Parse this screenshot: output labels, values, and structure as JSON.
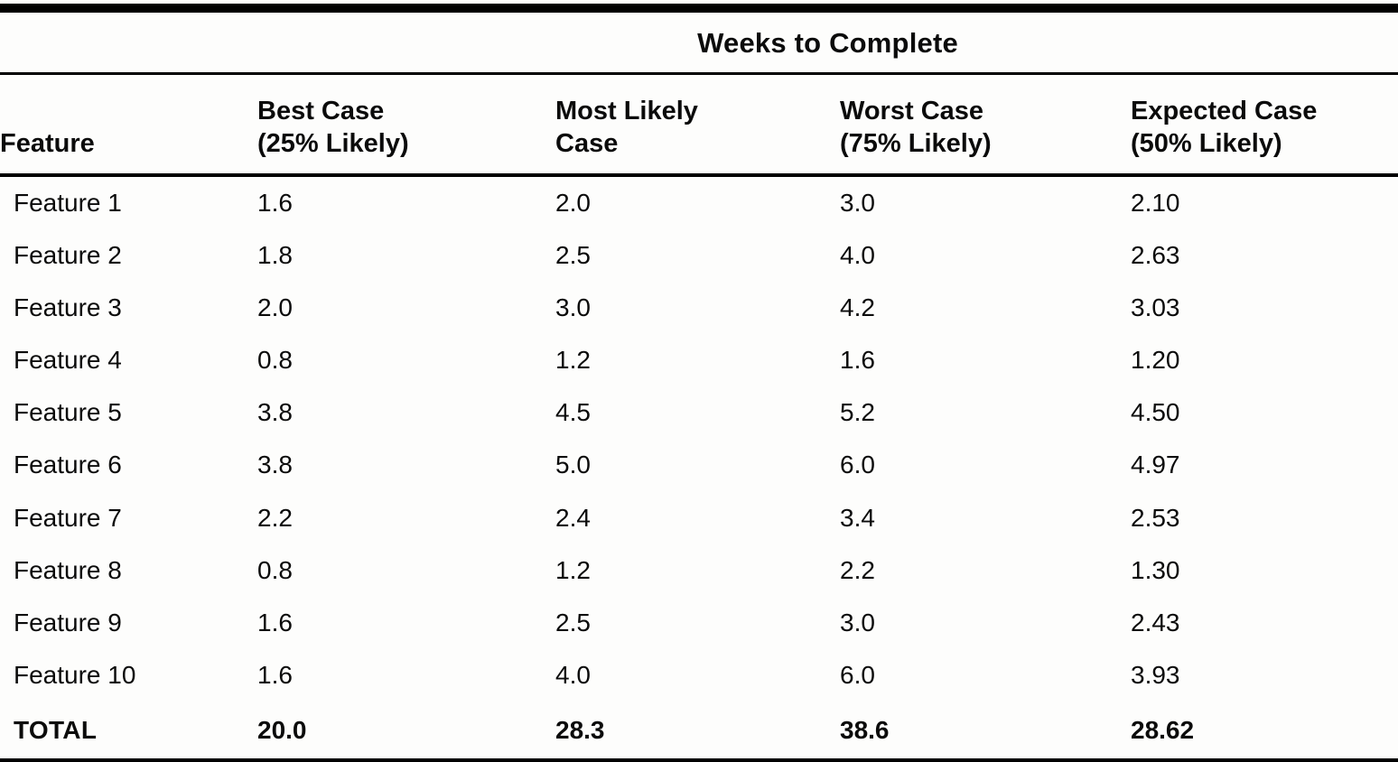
{
  "page": {
    "background": "#fdfdfc",
    "text_color": "#0b0b0b"
  },
  "table": {
    "title": "Weeks to Complete",
    "columns": [
      {
        "line1": "Feature",
        "line2": ""
      },
      {
        "line1": "Best Case",
        "line2": "(25% Likely)"
      },
      {
        "line1": "Most Likely",
        "line2": "Case"
      },
      {
        "line1": "Worst Case",
        "line2": "(75% Likely)"
      },
      {
        "line1": "Expected Case",
        "line2": "(50% Likely)"
      }
    ],
    "rows": [
      {
        "feature": "Feature 1",
        "best": "1.6",
        "most_likely": "2.0",
        "worst": "3.0",
        "expected": "2.10"
      },
      {
        "feature": "Feature 2",
        "best": "1.8",
        "most_likely": "2.5",
        "worst": "4.0",
        "expected": "2.63"
      },
      {
        "feature": "Feature 3",
        "best": "2.0",
        "most_likely": "3.0",
        "worst": "4.2",
        "expected": "3.03"
      },
      {
        "feature": "Feature 4",
        "best": "0.8",
        "most_likely": "1.2",
        "worst": "1.6",
        "expected": "1.20"
      },
      {
        "feature": "Feature 5",
        "best": "3.8",
        "most_likely": "4.5",
        "worst": "5.2",
        "expected": "4.50"
      },
      {
        "feature": "Feature 6",
        "best": "3.8",
        "most_likely": "5.0",
        "worst": "6.0",
        "expected": "4.97"
      },
      {
        "feature": "Feature 7",
        "best": "2.2",
        "most_likely": "2.4",
        "worst": "3.4",
        "expected": "2.53"
      },
      {
        "feature": "Feature 8",
        "best": "0.8",
        "most_likely": "1.2",
        "worst": "2.2",
        "expected": "1.30"
      },
      {
        "feature": "Feature 9",
        "best": "1.6",
        "most_likely": "2.5",
        "worst": "3.0",
        "expected": "2.43"
      },
      {
        "feature": "Feature 10",
        "best": "1.6",
        "most_likely": "4.0",
        "worst": "6.0",
        "expected": "3.93"
      },
      {
        "feature": "TOTAL",
        "best": "20.0",
        "most_likely": "28.3",
        "worst": "38.6",
        "expected": "28.62"
      }
    ]
  }
}
